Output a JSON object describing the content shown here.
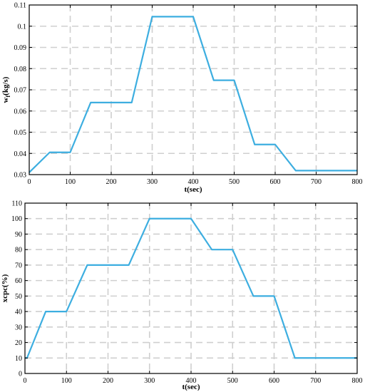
{
  "chart_data": [
    {
      "type": "line",
      "xlabel": "t(sec)",
      "ylabel": "w_f(kg/s)",
      "ylabel_main": "w",
      "ylabel_sub": "f",
      "ylabel_unit": "(kg/s)",
      "xlim": [
        0,
        800
      ],
      "ylim": [
        0.03,
        0.11
      ],
      "x_ticks": [
        0,
        100,
        200,
        300,
        400,
        500,
        600,
        700,
        800
      ],
      "x_tick_labels": [
        "0",
        "100",
        "200",
        "300",
        "400",
        "500",
        "600",
        "700",
        "800"
      ],
      "y_ticks": [
        0.03,
        0.04,
        0.05,
        0.06,
        0.07,
        0.08,
        0.09,
        0.1,
        0.11
      ],
      "y_tick_labels": [
        "0.03",
        "0.04",
        "0.05",
        "0.06",
        "0.07",
        "0.08",
        "0.09",
        "0.1",
        "0.11"
      ],
      "grid": true,
      "series": [
        {
          "color": "#3daee0",
          "x": [
            0,
            5,
            50,
            100,
            150,
            250,
            300,
            400,
            450,
            500,
            550,
            600,
            650,
            800
          ],
          "y": [
            0.031,
            0.032,
            0.0405,
            0.0405,
            0.064,
            0.064,
            0.1045,
            0.1045,
            0.0745,
            0.0745,
            0.0442,
            0.0442,
            0.0319,
            0.0319
          ]
        }
      ]
    },
    {
      "type": "line",
      "xlabel": "t(sec)",
      "ylabel": "xcpc(%)",
      "xlim": [
        0,
        800
      ],
      "ylim": [
        0,
        110
      ],
      "x_ticks": [
        0,
        100,
        200,
        300,
        400,
        500,
        600,
        700,
        800
      ],
      "x_tick_labels": [
        "0",
        "100",
        "200",
        "300",
        "400",
        "500",
        "600",
        "700",
        "800"
      ],
      "y_ticks": [
        0,
        10,
        20,
        30,
        40,
        50,
        60,
        70,
        80,
        90,
        100,
        110
      ],
      "y_tick_labels": [
        "0",
        "10",
        "20",
        "30",
        "40",
        "50",
        "60",
        "70",
        "80",
        "90",
        "100",
        "110"
      ],
      "grid": true,
      "series": [
        {
          "color": "#3daee0",
          "x": [
            0,
            5,
            50,
            100,
            150,
            250,
            300,
            400,
            450,
            500,
            550,
            600,
            650,
            800
          ],
          "y": [
            10,
            10,
            40,
            40,
            70,
            70,
            100,
            100,
            80,
            80,
            50,
            50,
            10,
            10
          ]
        }
      ]
    }
  ]
}
